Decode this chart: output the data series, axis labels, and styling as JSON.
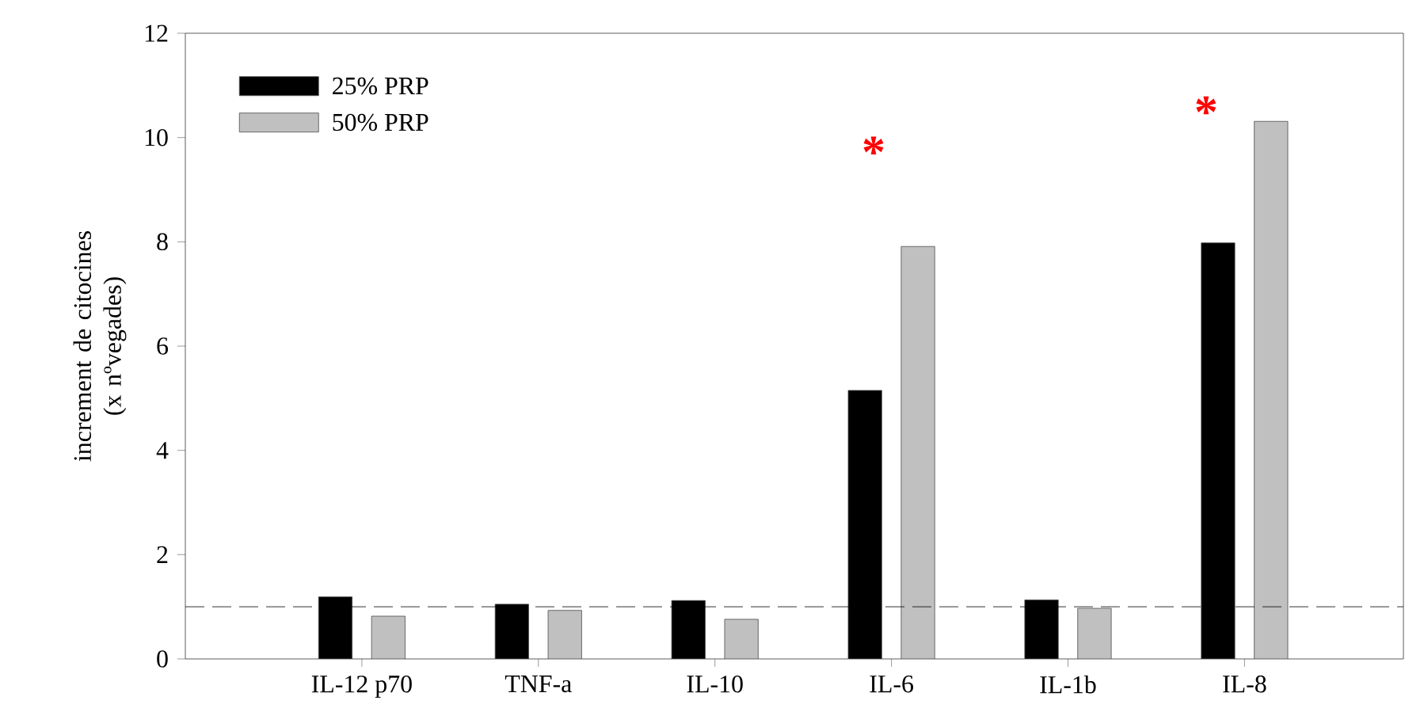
{
  "chart_data": {
    "type": "bar",
    "ylabel": "increment de citocines (x nºvegades)",
    "categories": [
      "IL-12 p70",
      "TNF-a",
      "IL-10",
      "IL-6",
      "IL-1b",
      "IL-8"
    ],
    "series": [
      {
        "name": "25% PRP",
        "color": "#000000",
        "values": [
          1.19,
          1.05,
          1.12,
          5.15,
          1.13,
          7.98
        ]
      },
      {
        "name": "50% PRP",
        "color": "#c0c0c0",
        "values": [
          0.82,
          0.93,
          0.76,
          7.91,
          0.97,
          10.31
        ]
      }
    ],
    "ylim": [
      0,
      12
    ],
    "yticks": [
      0,
      2,
      4,
      6,
      8,
      10,
      12
    ],
    "ref_lines": [
      {
        "axis": "y",
        "value": 1,
        "line_style": "dashed"
      }
    ],
    "annotations": [
      "*",
      "*"
    ],
    "legend": "top left",
    "grid": false
  }
}
